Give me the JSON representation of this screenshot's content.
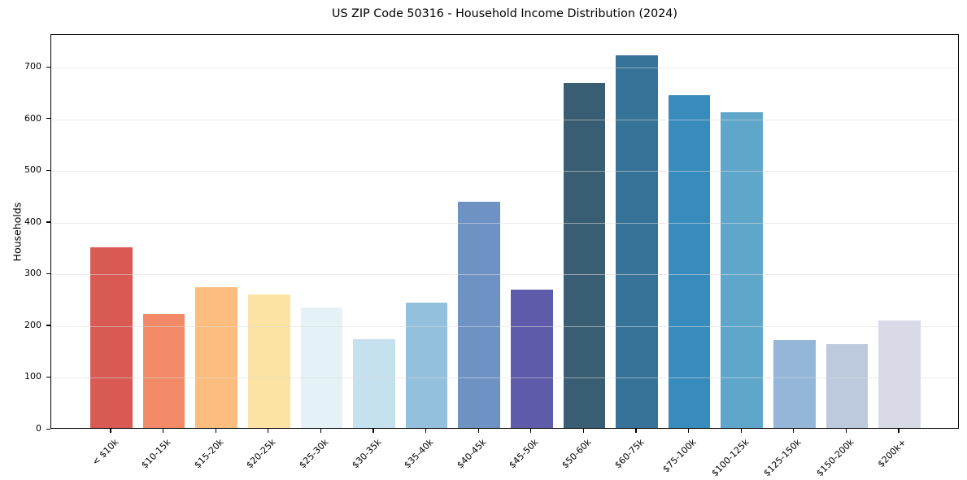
{
  "figure": {
    "background": "#ffffff",
    "text_color": "#000000",
    "spine_color": "#000000",
    "gridline_color": "#dcdcdc"
  },
  "chart_data": {
    "type": "bar",
    "title": "US ZIP Code 50316 - Household Income Distribution (2024)",
    "xlabel": "",
    "ylabel": "Households",
    "categories": [
      "< $10k",
      "$10-15k",
      "$15-20k",
      "$20-25k",
      "$25-30k",
      "$30-35k",
      "$35-40k",
      "$40-45k",
      "$45-50k",
      "$50-60k",
      "$60-75k",
      "$75-100k",
      "$100-125k",
      "$125-150k",
      "$150-200k",
      "$200k+"
    ],
    "values": [
      349,
      221,
      272,
      258,
      233,
      171,
      242,
      438,
      268,
      667,
      721,
      643,
      611,
      170,
      162,
      207
    ],
    "bar_colors": [
      "#d85a52",
      "#f28a68",
      "#fcbd7e",
      "#fde3a3",
      "#e4f1f6",
      "#c5e1ed",
      "#93c0dc",
      "#6e92c4",
      "#5d5baa",
      "#395e73",
      "#377398",
      "#388bbd",
      "#5fa6cb",
      "#93b6d9",
      "#bdcade",
      "#d9dae8"
    ],
    "yticks": [
      0,
      100,
      200,
      300,
      400,
      500,
      600,
      700
    ],
    "ylim": [
      0,
      763
    ],
    "grid": "horizontal-only",
    "gridlines_above_bars": true,
    "x_tick_rotation_deg": 45,
    "bar_relative_width": 0.8,
    "legend": "none"
  }
}
